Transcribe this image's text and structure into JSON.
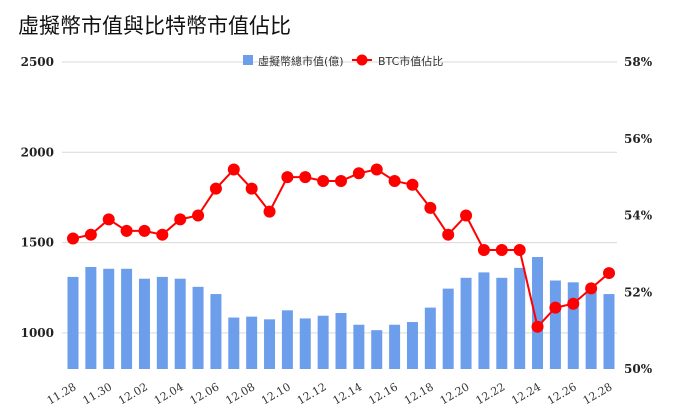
{
  "chart_data": {
    "type": "bar",
    "title": "虛擬幣市值與比特幣市值佔比",
    "categories": [
      "11.28",
      "11.29",
      "11.30",
      "12.01",
      "12.02",
      "12.03",
      "12.04",
      "12.05",
      "12.06",
      "12.07",
      "12.08",
      "12.09",
      "12.10",
      "12.11",
      "12.12",
      "12.13",
      "12.14",
      "12.15",
      "12.16",
      "12.17",
      "12.18",
      "12.19",
      "12.20",
      "12.21",
      "12.22",
      "12.23",
      "12.24",
      "12.25",
      "12.26",
      "12.27",
      "12.28"
    ],
    "x_tick_labels": [
      "11.28",
      "11.30",
      "12.02",
      "12.04",
      "12.06",
      "12.08",
      "12.10",
      "12.12",
      "12.14",
      "12.16",
      "12.18",
      "12.20",
      "12.22",
      "12.24",
      "12.26",
      "12.28"
    ],
    "series": [
      {
        "name": "虛擬幣總市值(億)",
        "type": "bar",
        "axis": "left",
        "color": "#6d9eeb",
        "values": [
          1310,
          1365,
          1355,
          1355,
          1300,
          1310,
          1300,
          1255,
          1215,
          1085,
          1090,
          1075,
          1125,
          1080,
          1095,
          1110,
          1045,
          1015,
          1045,
          1060,
          1140,
          1245,
          1305,
          1335,
          1305,
          1360,
          1420,
          1290,
          1280,
          1245,
          1215
        ]
      },
      {
        "name": "BTC市值佔比",
        "type": "line",
        "axis": "right",
        "color": "#ff0000",
        "values": [
          53.4,
          53.5,
          53.9,
          53.6,
          53.6,
          53.5,
          53.9,
          54.0,
          54.7,
          55.2,
          54.7,
          54.1,
          55.0,
          55.0,
          54.9,
          54.9,
          55.1,
          55.2,
          54.9,
          54.8,
          54.2,
          53.5,
          54.0,
          53.1,
          53.1,
          53.1,
          51.1,
          51.6,
          51.7,
          52.1,
          52.5
        ]
      }
    ],
    "y_left": {
      "ylim": [
        800,
        2500
      ],
      "ticks": [
        1000,
        1500,
        2000,
        2500
      ]
    },
    "y_right": {
      "ylim": [
        50,
        58
      ],
      "ticks": [
        "50%",
        "52%",
        "54%",
        "56%",
        "58%"
      ],
      "tick_values": [
        50,
        52,
        54,
        56,
        58
      ]
    },
    "grid": true,
    "legend_position": "top-center"
  }
}
